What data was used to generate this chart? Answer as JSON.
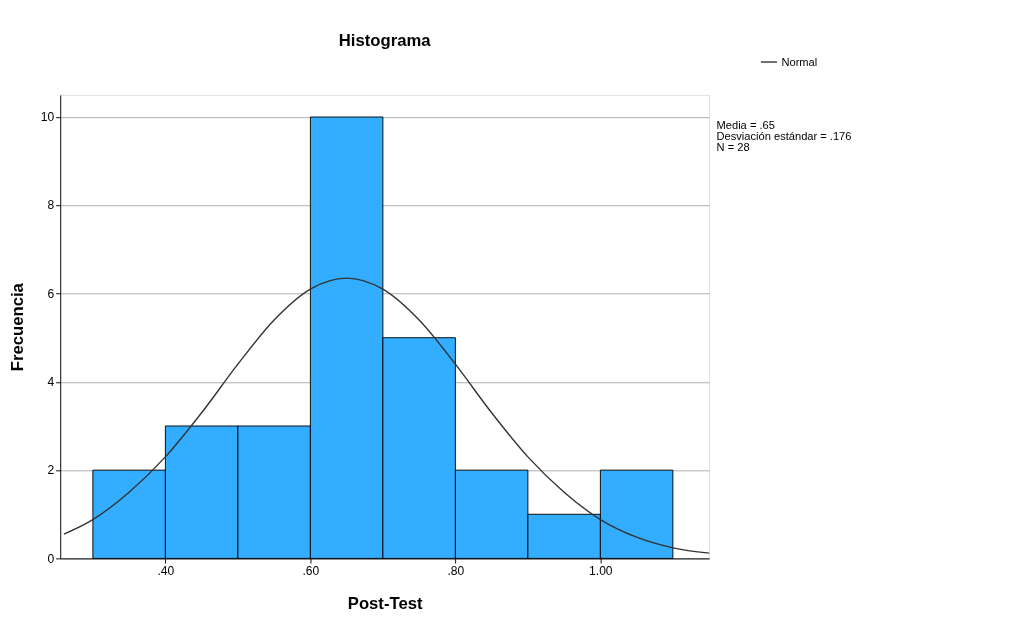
{
  "chart_data": {
    "type": "histogram",
    "title": "Histograma",
    "xlabel": "Post-Test",
    "ylabel": "Frecuencia",
    "bins": [
      0.3,
      0.4,
      0.5,
      0.6,
      0.7,
      0.8,
      0.9,
      1.0,
      1.1
    ],
    "values": [
      2,
      3,
      3,
      10,
      5,
      2,
      1,
      2
    ],
    "color": "#33adff",
    "series": [
      {
        "name": "Normal",
        "type": "line",
        "color": "#333333",
        "x": [
          0.26,
          0.3,
          0.35,
          0.4,
          0.45,
          0.5,
          0.55,
          0.6,
          0.65,
          0.7,
          0.75,
          0.8,
          0.85,
          0.9,
          0.95,
          1.0,
          1.05,
          1.1,
          1.15
        ],
        "values": [
          0.55,
          0.88,
          1.5,
          2.3,
          3.3,
          4.4,
          5.4,
          6.1,
          6.35,
          6.1,
          5.4,
          4.4,
          3.3,
          2.3,
          1.5,
          0.88,
          0.48,
          0.24,
          0.12
        ]
      }
    ],
    "xlim": [
      0.255,
      1.15
    ],
    "xticks": [
      {
        "value": 0.4,
        "label": ".40"
      },
      {
        "value": 0.6,
        "label": ".60"
      },
      {
        "value": 0.8,
        "label": ".80"
      },
      {
        "value": 1.0,
        "label": "1.00"
      }
    ],
    "ylim": [
      0,
      10.5
    ],
    "yticks": [
      0,
      2,
      4,
      6,
      8,
      10
    ],
    "grid": "y",
    "legend": "top right",
    "annotations": [
      "Media = .65",
      "Desviación estándar = .176",
      "N = 28"
    ]
  }
}
